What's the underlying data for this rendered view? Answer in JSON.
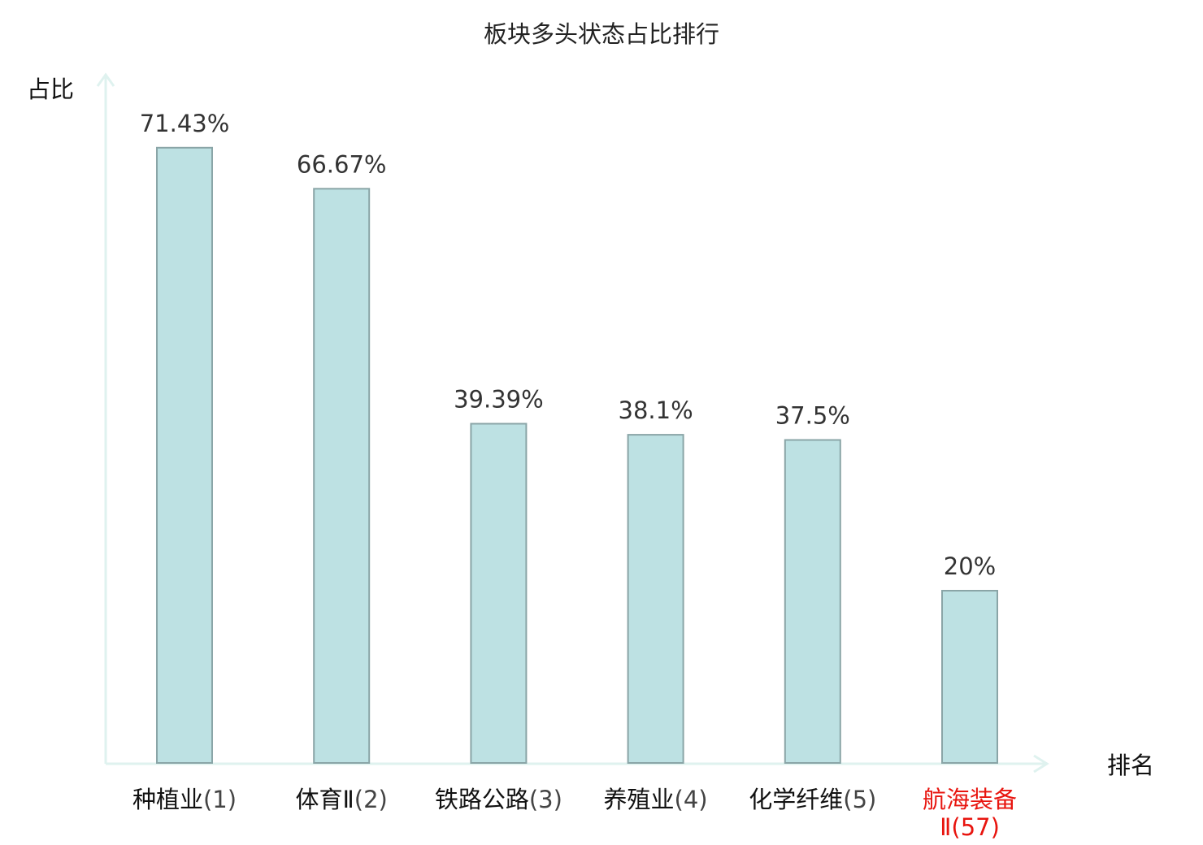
{
  "chart_data": {
    "type": "bar",
    "title": "板块多头状态占比排行",
    "xlabel": "排名",
    "ylabel": "占比",
    "categories": [
      {
        "name": "种植业",
        "rank": "(1)",
        "highlight": false
      },
      {
        "name": "体育Ⅱ",
        "rank": "(2)",
        "highlight": false
      },
      {
        "name": "铁路公路",
        "rank": "(3)",
        "highlight": false
      },
      {
        "name": "养殖业",
        "rank": "(4)",
        "highlight": false
      },
      {
        "name": "化学纤维",
        "rank": "(5)",
        "highlight": false
      },
      {
        "name": "航海装备",
        "name_line2": "Ⅱ",
        "rank": "(57)",
        "highlight": true
      }
    ],
    "values": [
      71.43,
      66.67,
      39.39,
      38.1,
      37.5,
      20
    ],
    "value_labels": [
      "71.43%",
      "66.67%",
      "39.39%",
      "38.1%",
      "37.5%",
      "20%"
    ],
    "ylim": [
      0,
      80
    ],
    "grid": false,
    "legend": "none",
    "colors": {
      "bar_fill": "#bde1e3",
      "bar_stroke": "#8aa5a7",
      "axis": "#dff2ef",
      "highlight_text": "#e8150f"
    }
  }
}
